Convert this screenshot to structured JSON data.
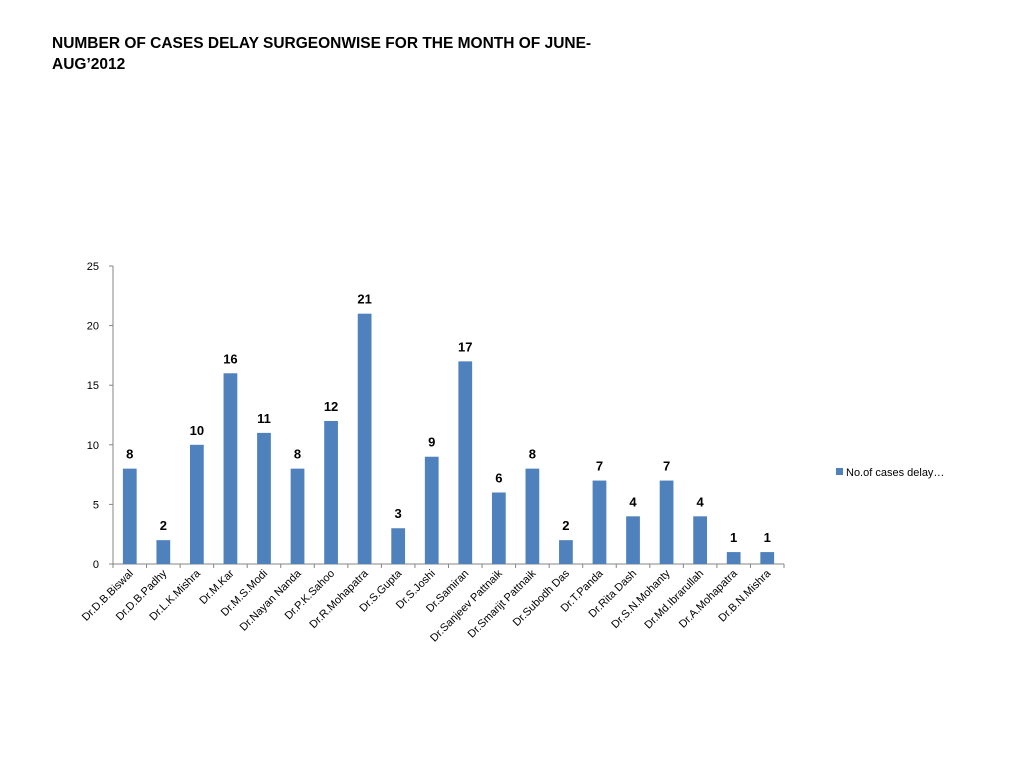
{
  "slide": {
    "title": "NUMBER OF CASES DELAY SURGEONWISE FOR THE MONTH OF JUNE-AUG’2012"
  },
  "colors": {
    "bar": "#4F81BD",
    "axis": "#868686"
  },
  "chart_data": {
    "type": "bar",
    "categories": [
      "Dr.D.B.Biswal",
      "Dr.D.B.Padhy",
      "Dr.L.K.Mishra",
      "Dr.M.Kar",
      "Dr.M.S.Modi",
      "Dr.Nayan Nanda",
      "Dr.P.K.Sahoo",
      "Dr.R.Mohapatra",
      "Dr.S.Gupta",
      "Dr.S.Joshi",
      "Dr.Samiran",
      "Dr.Sanjeev Pattnaik",
      "Dr.Smarijt Pattnaik",
      "Dr.Subodh Das",
      "Dr.T.Panda",
      "Dr.Rita Dash",
      "Dr.S.N.Mohanty",
      "Dr.Md.Ibrarullah",
      "Dr.A.Mohapatra",
      "Dr.B.N.Mishra"
    ],
    "series": [
      {
        "name": "No.of cases delay…",
        "values": [
          8,
          2,
          10,
          16,
          11,
          8,
          12,
          21,
          3,
          9,
          17,
          6,
          8,
          2,
          7,
          4,
          7,
          4,
          1,
          1
        ]
      }
    ],
    "ylim": [
      0,
      25
    ],
    "yticks": [
      0,
      5,
      10,
      15,
      20,
      25
    ],
    "grid": false,
    "legend_position": "right",
    "data_labels": true
  }
}
